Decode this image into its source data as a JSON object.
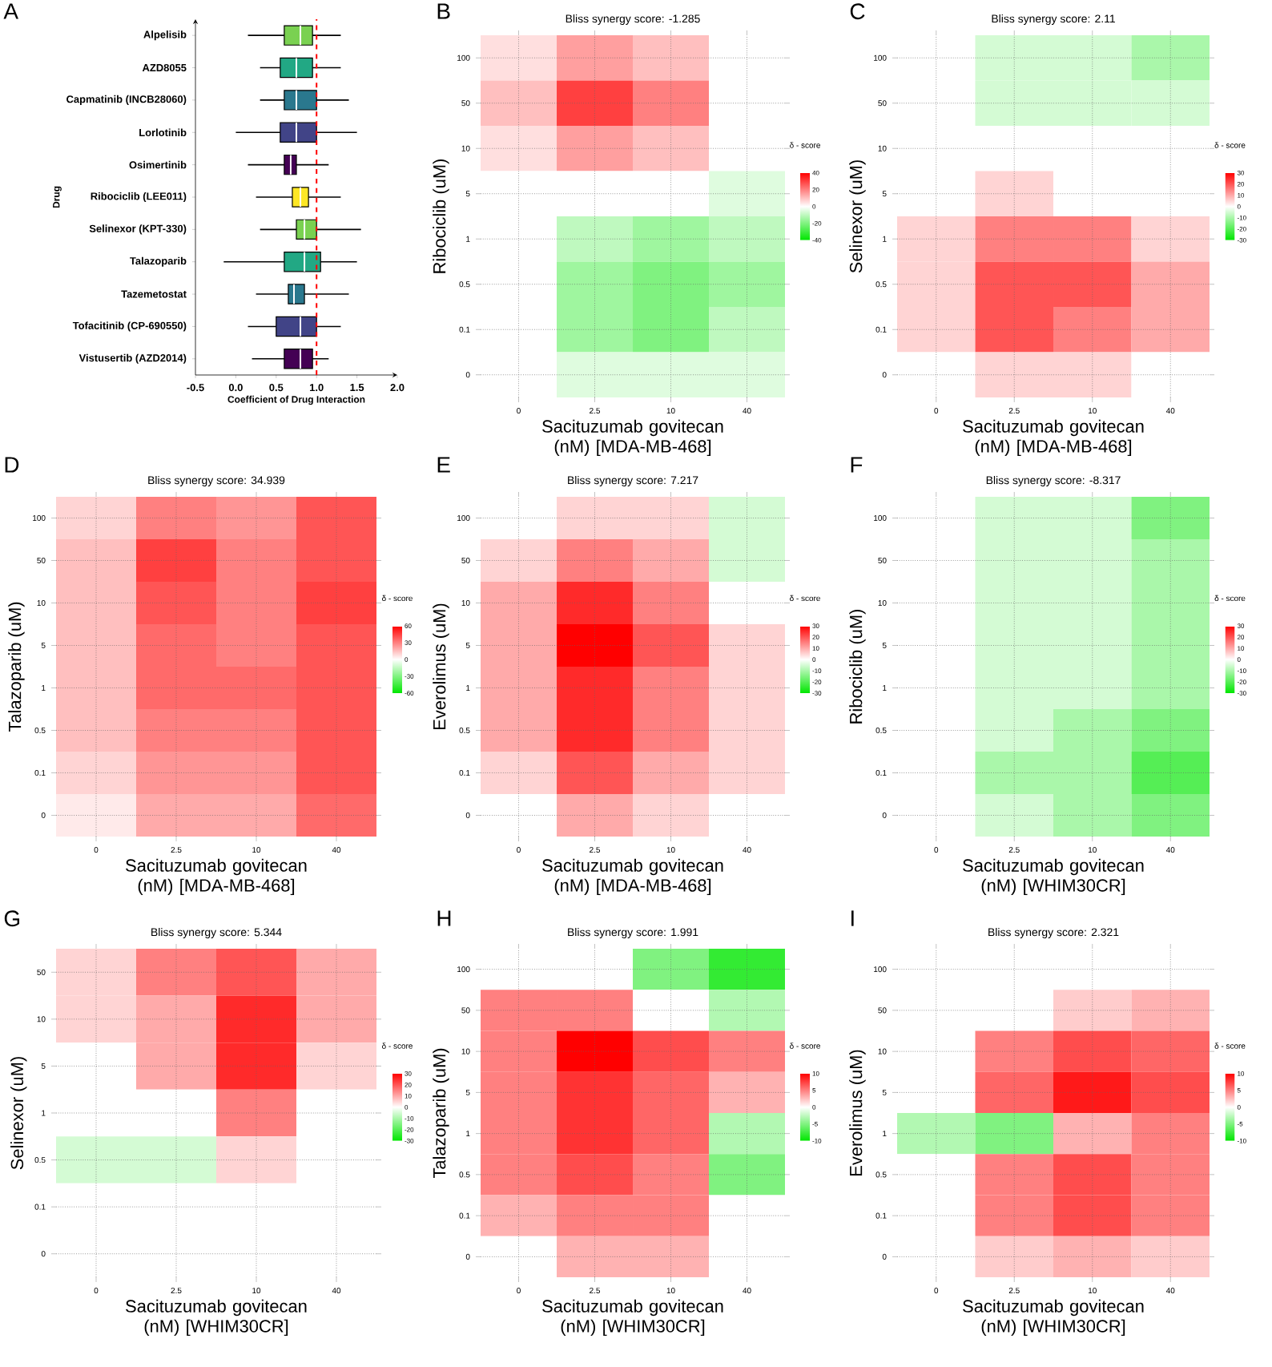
{
  "chart_data": [
    {
      "type": "box",
      "orientation": "horizontal",
      "annotations": [
        "A"
      ],
      "xlabel": "Coefficient of Drug Interaction",
      "ylabel": "Drug",
      "categories": [
        "Alpelisib",
        "AZD8055",
        "Capmatinib (INCB28060)",
        "Lorlotinib",
        "Osimertinib",
        "Ribociclib (LEE011)",
        "Selinexor (KPT-330)",
        "Talazoparib",
        "Tazemetostat",
        "Tofacitinib (CP-690550)",
        "Vistusertib (AZD2014)"
      ],
      "colors": [
        "#7ad151",
        "#22a884",
        "#2a788e",
        "#414487",
        "#440154",
        "#fde725",
        "#7ad151",
        "#22a884",
        "#2a788e",
        "#414487",
        "#440154"
      ],
      "boxes": [
        {
          "low": 0.15,
          "q1": 0.6,
          "median": 0.8,
          "q3": 0.95,
          "high": 1.3
        },
        {
          "low": 0.3,
          "q1": 0.55,
          "median": 0.75,
          "q3": 0.95,
          "high": 1.3
        },
        {
          "low": 0.3,
          "q1": 0.6,
          "median": 0.75,
          "q3": 1.0,
          "high": 1.4
        },
        {
          "low": 0.0,
          "q1": 0.55,
          "median": 0.75,
          "q3": 1.0,
          "high": 1.5
        },
        {
          "low": 0.15,
          "q1": 0.6,
          "median": 0.68,
          "q3": 0.75,
          "high": 1.15
        },
        {
          "low": 0.25,
          "q1": 0.7,
          "median": 0.8,
          "q3": 0.9,
          "high": 1.3
        },
        {
          "low": 0.3,
          "q1": 0.75,
          "median": 0.85,
          "q3": 1.0,
          "high": 1.55
        },
        {
          "low": -0.15,
          "q1": 0.6,
          "median": 0.85,
          "q3": 1.05,
          "high": 1.5
        },
        {
          "low": 0.25,
          "q1": 0.65,
          "median": 0.72,
          "q3": 0.85,
          "high": 1.4
        },
        {
          "low": 0.15,
          "q1": 0.5,
          "median": 0.8,
          "q3": 1.0,
          "high": 1.3
        },
        {
          "low": 0.2,
          "q1": 0.6,
          "median": 0.8,
          "q3": 0.95,
          "high": 1.15
        }
      ],
      "xlim": [
        -0.5,
        2.0
      ],
      "xticks": [
        -0.5,
        {
          "value": 0,
          "label": "0.0"
        },
        0.5,
        {
          "value": 1,
          "label": "1.0"
        },
        1.5,
        {
          "value": 2,
          "label": "2.0"
        }
      ],
      "ref_lines": [
        {
          "axis": "x",
          "value": 1,
          "color": "#ff0000",
          "line_style": "dashed"
        }
      ]
    },
    {
      "type": "heatmap",
      "annotations": [
        "B"
      ],
      "title": "Bliss synergy score: -1.285",
      "xlabel": "Sacituzumab govitecan (nM) [MDA-MB-468]",
      "ylabel": "Ribociclib (uM)",
      "clabel": "δ - score",
      "grid": true,
      "categories": [
        "0",
        "2.5",
        "10",
        "40"
      ],
      "y_categories": [
        "100",
        "50",
        "10",
        "5",
        "1",
        "0.5",
        "0.1",
        "0"
      ],
      "cells": [
        [
          5,
          15,
          10,
          0
        ],
        [
          10,
          30,
          20,
          0
        ],
        [
          5,
          15,
          10,
          0
        ],
        [
          0,
          0,
          0,
          -5
        ],
        [
          0,
          -10,
          -15,
          -10
        ],
        [
          0,
          -15,
          -20,
          -15
        ],
        [
          0,
          -15,
          -20,
          -10
        ],
        [
          0,
          -5,
          -5,
          -5
        ]
      ],
      "clim": [
        -40,
        40
      ],
      "cticks": [
        -40,
        -20,
        0,
        20,
        40
      ]
    },
    {
      "type": "heatmap",
      "annotations": [
        "C"
      ],
      "title": "Bliss synergy score: 2.11",
      "xlabel": "Sacituzumab govitecan (nM) [MDA-MB-468]",
      "ylabel": "Selinexor (uM)",
      "clabel": "δ - score",
      "grid": true,
      "categories": [
        "0",
        "2.5",
        "10",
        "40"
      ],
      "y_categories": [
        "100",
        "50",
        "10",
        "5",
        "1",
        "0.5",
        "0.1",
        "0"
      ],
      "cells": [
        [
          0,
          -5,
          -5,
          -10
        ],
        [
          0,
          -5,
          -5,
          -5
        ],
        [
          0,
          0,
          0,
          0
        ],
        [
          0,
          5,
          0,
          0
        ],
        [
          5,
          15,
          15,
          5
        ],
        [
          5,
          20,
          20,
          10
        ],
        [
          5,
          20,
          15,
          10
        ],
        [
          0,
          5,
          5,
          0
        ]
      ],
      "clim": [
        -30,
        30
      ],
      "cticks": [
        -30,
        -20,
        -10,
        0,
        10,
        20,
        30
      ]
    },
    {
      "type": "heatmap",
      "annotations": [
        "D"
      ],
      "title": "Bliss synergy score: 34.939",
      "xlabel": "Sacituzumab govitecan (nM) [MDA-MB-468]",
      "ylabel": "Talazoparib (uM)",
      "clabel": "δ - score",
      "grid": true,
      "categories": [
        "0",
        "2.5",
        "10",
        "40"
      ],
      "y_categories": [
        "100",
        "50",
        "10",
        "5",
        "1",
        "0.5",
        "0.1",
        "0"
      ],
      "cells": [
        [
          10,
          30,
          25,
          40
        ],
        [
          15,
          45,
          30,
          40
        ],
        [
          15,
          40,
          30,
          45
        ],
        [
          15,
          35,
          30,
          40
        ],
        [
          15,
          35,
          35,
          40
        ],
        [
          15,
          30,
          30,
          40
        ],
        [
          10,
          25,
          25,
          40
        ],
        [
          5,
          20,
          20,
          35
        ]
      ],
      "clim": [
        -60,
        60
      ],
      "cticks": [
        -60,
        -30,
        0,
        30,
        60
      ]
    },
    {
      "type": "heatmap",
      "annotations": [
        "E"
      ],
      "title": "Bliss synergy score: 7.217",
      "xlabel": "Sacituzumab govitecan (nM) [MDA-MB-468]",
      "ylabel": "Everolimus (uM)",
      "clabel": "δ - score",
      "grid": true,
      "categories": [
        "0",
        "2.5",
        "10",
        "40"
      ],
      "y_categories": [
        "100",
        "50",
        "10",
        "5",
        "1",
        "0.5",
        "0.1",
        "0"
      ],
      "cells": [
        [
          0,
          5,
          5,
          -5
        ],
        [
          5,
          15,
          10,
          -5
        ],
        [
          10,
          25,
          15,
          0
        ],
        [
          10,
          30,
          20,
          5
        ],
        [
          10,
          25,
          15,
          5
        ],
        [
          10,
          25,
          15,
          5
        ],
        [
          5,
          20,
          10,
          5
        ],
        [
          0,
          10,
          5,
          0
        ]
      ],
      "clim": [
        -30,
        30
      ],
      "cticks": [
        -30,
        -20,
        -10,
        0,
        10,
        20,
        30
      ]
    },
    {
      "type": "heatmap",
      "annotations": [
        "F"
      ],
      "title": "Bliss synergy score: -8.317",
      "xlabel": "Sacituzumab govitecan (nM) [WHIM30CR]",
      "ylabel": "Ribociclib (uM)",
      "clabel": "δ - score",
      "grid": true,
      "categories": [
        "0",
        "2.5",
        "10",
        "40"
      ],
      "y_categories": [
        "100",
        "50",
        "10",
        "5",
        "1",
        "0.5",
        "0.1",
        "0"
      ],
      "cells": [
        [
          0,
          -5,
          -5,
          -15
        ],
        [
          0,
          -5,
          -5,
          -10
        ],
        [
          0,
          -5,
          -5,
          -10
        ],
        [
          0,
          -5,
          -5,
          -10
        ],
        [
          0,
          -5,
          -5,
          -10
        ],
        [
          0,
          -5,
          -10,
          -15
        ],
        [
          0,
          -10,
          -10,
          -20
        ],
        [
          0,
          -5,
          -10,
          -15
        ]
      ],
      "clim": [
        -30,
        30
      ],
      "cticks": [
        -30,
        -20,
        -10,
        0,
        10,
        20,
        30
      ]
    },
    {
      "type": "heatmap",
      "annotations": [
        "G"
      ],
      "title": "Bliss synergy score: 5.344",
      "xlabel": "Sacituzumab govitecan (nM) [WHIM30CR]",
      "ylabel": "Selinexor (uM)",
      "clabel": "δ - score",
      "grid": true,
      "categories": [
        "0",
        "2.5",
        "10",
        "40"
      ],
      "y_categories": [
        "50",
        "10",
        "5",
        "1",
        "0.5",
        "0.1",
        "0"
      ],
      "cells": [
        [
          5,
          15,
          20,
          10
        ],
        [
          5,
          10,
          25,
          10
        ],
        [
          0,
          10,
          25,
          5
        ],
        [
          0,
          0,
          15,
          0
        ],
        [
          -5,
          -5,
          5,
          0
        ],
        [
          0,
          0,
          0,
          0
        ],
        [
          0,
          0,
          0,
          0
        ]
      ],
      "clim": [
        -30,
        30
      ],
      "cticks": [
        -30,
        -20,
        -10,
        0,
        10,
        20,
        30
      ]
    },
    {
      "type": "heatmap",
      "annotations": [
        "H"
      ],
      "title": "Bliss synergy score: 1.991",
      "xlabel": "Sacituzumab govitecan (nM) [WHIM30CR]",
      "ylabel": "Talazoparib (uM)",
      "clabel": "δ - score",
      "grid": true,
      "categories": [
        "0",
        "2.5",
        "10",
        "40"
      ],
      "y_categories": [
        "100",
        "50",
        "10",
        "5",
        "1",
        "0.5",
        "0.1",
        "0"
      ],
      "cells": [
        [
          0,
          0,
          -5,
          -8
        ],
        [
          5,
          5,
          0,
          -3
        ],
        [
          5,
          10,
          7,
          5
        ],
        [
          5,
          8,
          6,
          3
        ],
        [
          5,
          8,
          6,
          -3
        ],
        [
          5,
          7,
          5,
          -5
        ],
        [
          3,
          5,
          5,
          0
        ],
        [
          0,
          3,
          3,
          0
        ]
      ],
      "clim": [
        -10,
        10
      ],
      "cticks": [
        -10,
        -5,
        0,
        5,
        10
      ]
    },
    {
      "type": "heatmap",
      "annotations": [
        "I"
      ],
      "title": "Bliss synergy score: 2.321",
      "xlabel": "Sacituzumab govitecan (nM) [WHIM30CR]",
      "ylabel": "Everolimus (uM)",
      "clabel": "δ - score",
      "grid": true,
      "categories": [
        "0",
        "2.5",
        "10",
        "40"
      ],
      "y_categories": [
        "100",
        "50",
        "10",
        "5",
        "1",
        "0.5",
        "0.1",
        "0"
      ],
      "cells": [
        [
          0,
          0,
          0,
          0
        ],
        [
          0,
          0,
          2,
          3
        ],
        [
          0,
          5,
          7,
          6
        ],
        [
          0,
          6,
          9,
          7
        ],
        [
          -3,
          -5,
          3,
          5
        ],
        [
          0,
          5,
          7,
          5
        ],
        [
          0,
          5,
          7,
          5
        ],
        [
          0,
          2,
          3,
          2
        ]
      ],
      "clim": [
        -10,
        10
      ],
      "cticks": [
        -10,
        -5,
        0,
        5,
        10
      ]
    }
  ]
}
